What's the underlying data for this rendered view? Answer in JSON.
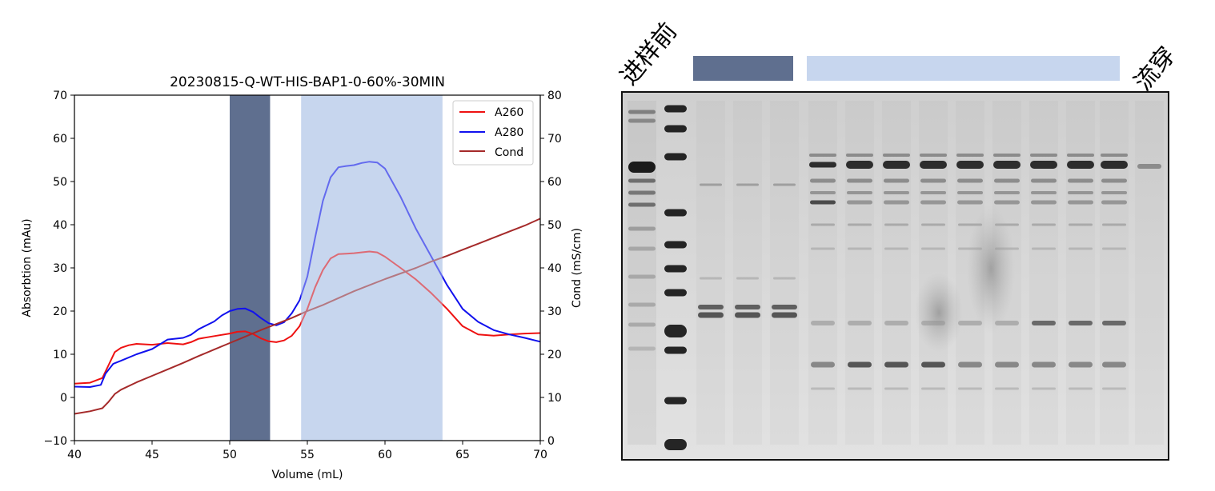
{
  "chart_data": {
    "type": "line",
    "title": "20230815-Q-WT-HIS-BAP1-0-60%-30MIN",
    "xlabel": "Volume (mL)",
    "ylabel": "Absorbtion (mAu)",
    "y2label": "Cond (mS/cm)",
    "xlim": [
      40,
      70
    ],
    "ylim": [
      -10,
      70
    ],
    "y2lim": [
      0,
      80
    ],
    "xticks": [
      "40",
      "45",
      "50",
      "55",
      "60",
      "65",
      "70"
    ],
    "yticks": [
      "−10",
      "0",
      "10",
      "20",
      "30",
      "40",
      "50",
      "60",
      "70"
    ],
    "y2ticks": [
      "0",
      "10",
      "20",
      "30",
      "40",
      "50",
      "60",
      "70",
      "80"
    ],
    "legend_position": "top-right",
    "regions": [
      {
        "x0": 50.0,
        "x1": 52.6,
        "color": "#5f6f8f"
      },
      {
        "x0": 54.6,
        "x1": 63.7,
        "color": "#c7d6ee"
      }
    ],
    "series": [
      {
        "name": "A260",
        "axis": "left",
        "color": "#ee1111",
        "x": [
          40,
          41,
          41.8,
          42.2,
          42.6,
          43,
          43.5,
          44,
          45,
          46,
          47,
          47.5,
          48,
          49,
          50,
          50.5,
          51,
          51.5,
          52,
          52.5,
          53,
          53.5,
          54,
          54.5,
          55,
          55.5,
          56,
          56.5,
          57,
          57.5,
          58,
          59,
          59.5,
          60,
          61,
          62,
          63,
          64,
          65,
          66,
          67,
          68,
          69,
          70
        ],
        "y": [
          3.2,
          3.4,
          4.5,
          7.5,
          10.5,
          11.5,
          12.1,
          12.4,
          12.2,
          12.6,
          12.3,
          12.8,
          13.6,
          14.2,
          14.8,
          15.2,
          15.3,
          14.7,
          13.7,
          13.0,
          12.8,
          13.2,
          14.3,
          16.5,
          20.5,
          25.5,
          29.5,
          32.2,
          33.2,
          33.3,
          33.4,
          33.8,
          33.6,
          32.6,
          30.0,
          27.3,
          24.1,
          20.5,
          16.5,
          14.6,
          14.3,
          14.6,
          14.8,
          14.9
        ]
      },
      {
        "name": "A280",
        "axis": "left",
        "color": "#1111ee",
        "x": [
          40,
          41,
          41.7,
          42,
          42.5,
          43,
          44,
          45,
          45.5,
          46,
          47,
          47.5,
          48,
          49,
          49.5,
          50,
          50.5,
          51,
          51.5,
          52,
          52.5,
          53,
          53.5,
          54,
          54.5,
          55,
          55.5,
          56,
          56.5,
          57,
          57.5,
          58,
          58.5,
          59,
          59.5,
          60,
          61,
          62,
          63,
          64,
          65,
          66,
          67,
          68,
          69,
          70
        ],
        "y": [
          2.5,
          2.4,
          2.9,
          5.5,
          7.8,
          8.5,
          10.0,
          11.2,
          12.3,
          13.4,
          13.8,
          14.5,
          15.8,
          17.6,
          19.0,
          20.0,
          20.5,
          20.6,
          19.8,
          18.4,
          17.2,
          16.7,
          17.4,
          19.5,
          22.5,
          28.0,
          37.0,
          45.5,
          51.0,
          53.3,
          53.6,
          53.8,
          54.3,
          54.6,
          54.4,
          53.0,
          46.5,
          39.0,
          32.5,
          26.0,
          20.5,
          17.5,
          15.6,
          14.6,
          13.8,
          12.9
        ]
      },
      {
        "name": "Cond",
        "axis": "right",
        "color": "#a52a2a",
        "x": [
          40,
          41,
          41.8,
          42.2,
          42.6,
          43,
          44,
          45,
          46,
          47,
          48,
          49,
          50,
          51,
          52,
          53,
          54,
          55,
          56,
          57,
          58,
          59,
          60,
          61,
          62,
          63,
          64,
          65,
          66,
          67,
          68,
          69,
          70
        ],
        "y": [
          6.2,
          6.8,
          7.5,
          9.0,
          10.8,
          11.8,
          13.5,
          15.0,
          16.5,
          18.0,
          19.6,
          21.1,
          22.6,
          24.1,
          25.6,
          27.0,
          28.4,
          30.0,
          31.4,
          33.0,
          34.6,
          36.0,
          37.4,
          38.7,
          40.0,
          41.5,
          42.8,
          44.2,
          45.6,
          47.0,
          48.4,
          49.8,
          51.4
        ]
      }
    ]
  },
  "gel": {
    "label_before": "进样前",
    "label_flowthrough": "流穿",
    "bar_dark_color": "#5f6f8f",
    "bar_light_color": "#c7d6ee"
  }
}
